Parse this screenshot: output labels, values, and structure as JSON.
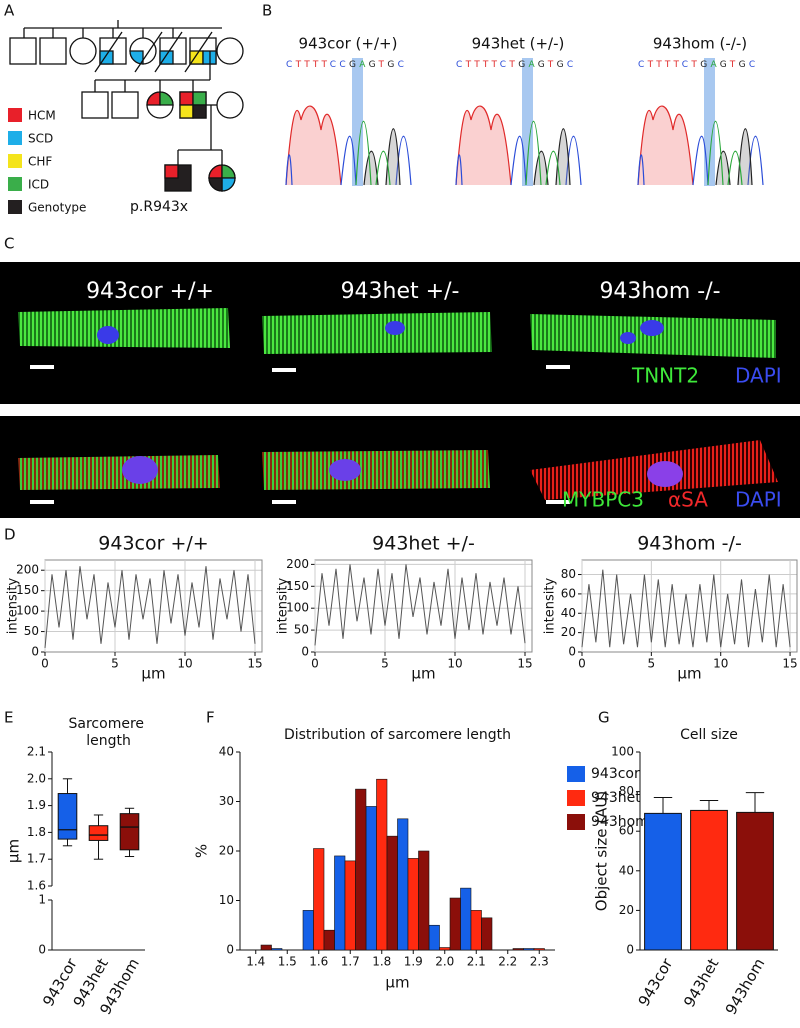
{
  "panel_labels": [
    "A",
    "B",
    "C",
    "D",
    "E",
    "F",
    "G"
  ],
  "pedigree": {
    "legend": [
      {
        "label": "HCM",
        "color": "#e8202a"
      },
      {
        "label": "SCD",
        "color": "#1eaee8"
      },
      {
        "label": "CHF",
        "color": "#f4e41c"
      },
      {
        "label": "ICD",
        "color": "#3aae4a"
      },
      {
        "label": "Genotype",
        "color": "#231f20"
      }
    ],
    "variant": "p.R943x"
  },
  "sequencing": [
    {
      "title": "943cor (+/+)",
      "sequence": "CTTTTCCGAGTGC"
    },
    {
      "title": "943het (+/-)",
      "sequence": "CTTTTCTGAGTGC"
    },
    {
      "title": "943hom (-/-)",
      "sequence": "CTTTTCTGAGTGC"
    }
  ],
  "imaging": {
    "titles": [
      "943cor +/+",
      "943het +/-",
      "943hom -/-"
    ],
    "top_stains": [
      {
        "label": "TNNT2",
        "color": "#3ee83a"
      },
      {
        "label": "DAPI",
        "color": "#3a4cf0"
      }
    ],
    "bottom_stains": [
      {
        "label": "MYBPC3",
        "color": "#3ee83a"
      },
      {
        "label": "αSA",
        "color": "#f0282a"
      },
      {
        "label": "DAPI",
        "color": "#3a4cf0"
      }
    ]
  },
  "chart_data": [
    {
      "type": "line",
      "title": "943cor +/+",
      "xlabel": "µm",
      "ylabel": "intensity",
      "grid": true,
      "color": "#555555",
      "x": [
        0,
        0.5,
        1,
        1.5,
        2,
        2.5,
        3,
        3.5,
        4,
        4.5,
        5,
        5.5,
        6,
        6.5,
        7,
        7.5,
        8,
        8.5,
        9,
        9.5,
        10,
        10.5,
        11,
        11.5,
        12,
        12.5,
        13,
        13.5,
        14,
        14.5,
        15
      ],
      "values": [
        10,
        190,
        60,
        200,
        30,
        210,
        80,
        190,
        20,
        170,
        60,
        200,
        30,
        190,
        80,
        180,
        20,
        200,
        70,
        190,
        40,
        170,
        60,
        210,
        30,
        180,
        80,
        200,
        50,
        190,
        20
      ],
      "xlim": [
        0,
        15.5
      ],
      "xticks": [
        0,
        5,
        10,
        15
      ],
      "ylim": [
        0,
        225
      ],
      "yticks": [
        0,
        50,
        100,
        150,
        200
      ]
    },
    {
      "type": "line",
      "title": "943het +/-",
      "xlabel": "µm",
      "ylabel": "intensity",
      "grid": true,
      "color": "#555555",
      "x": [
        0,
        0.5,
        1,
        1.5,
        2,
        2.5,
        3,
        3.5,
        4,
        4.5,
        5,
        5.5,
        6,
        6.5,
        7,
        7.5,
        8,
        8.5,
        9,
        9.5,
        10,
        10.5,
        11,
        11.5,
        12,
        12.5,
        13,
        13.5,
        14,
        14.5,
        15
      ],
      "values": [
        15,
        180,
        60,
        190,
        30,
        200,
        70,
        170,
        40,
        190,
        60,
        180,
        30,
        200,
        80,
        170,
        40,
        160,
        60,
        190,
        30,
        170,
        50,
        180,
        40,
        160,
        60,
        170,
        40,
        150,
        20
      ],
      "xlim": [
        0,
        15.5
      ],
      "xticks": [
        0,
        5,
        10,
        15
      ],
      "ylim": [
        0,
        210
      ],
      "yticks": [
        0,
        50,
        100,
        150,
        200
      ]
    },
    {
      "type": "line",
      "title": "943hom -/-",
      "xlabel": "µm",
      "ylabel": "intensity",
      "grid": true,
      "color": "#555555",
      "x": [
        0,
        0.5,
        1,
        1.5,
        2,
        2.5,
        3,
        3.5,
        4,
        4.5,
        5,
        5.5,
        6,
        6.5,
        7,
        7.5,
        8,
        8.5,
        9,
        9.5,
        10,
        10.5,
        11,
        11.5,
        12,
        12.5,
        13,
        13.5,
        14,
        14.5,
        15
      ],
      "values": [
        5,
        70,
        10,
        85,
        5,
        80,
        8,
        60,
        5,
        80,
        10,
        75,
        5,
        70,
        8,
        60,
        5,
        70,
        10,
        80,
        5,
        60,
        8,
        75,
        5,
        65,
        10,
        80,
        5,
        70,
        5
      ],
      "xlim": [
        0,
        15.5
      ],
      "xticks": [
        0,
        5,
        10,
        15
      ],
      "ylim": [
        0,
        95
      ],
      "yticks": [
        0,
        20,
        40,
        60,
        80
      ]
    },
    {
      "type": "box",
      "title": "Sarcomere length",
      "ylabel": "µm",
      "categories": [
        "943cor",
        "943het",
        "943hom"
      ],
      "colors": [
        "#1560e8",
        "#ff2a10",
        "#8b0f0a"
      ],
      "boxes": [
        {
          "min": 1.75,
          "q1": 1.775,
          "median": 1.81,
          "q3": 1.945,
          "max": 2.0
        },
        {
          "min": 1.7,
          "q1": 1.77,
          "median": 1.79,
          "q3": 1.825,
          "max": 1.865
        },
        {
          "min": 1.71,
          "q1": 1.735,
          "median": 1.82,
          "q3": 1.87,
          "max": 1.89
        }
      ],
      "ylim": [
        0,
        2.1
      ],
      "ybreak": [
        1,
        1.6
      ],
      "yticks": [
        0,
        1,
        1.6,
        1.7,
        1.8,
        1.9,
        {
          "value": 2,
          "label": "2.0"
        },
        2.1
      ]
    },
    {
      "type": "bar",
      "title": "Distribution of sarcomere length",
      "xlabel": "µm",
      "ylabel": "%",
      "x": [
        1.4,
        1.5,
        1.6,
        1.7,
        1.8,
        1.9,
        2.0,
        2.1,
        2.2,
        2.3
      ],
      "series": [
        {
          "name": "943cor",
          "color": "#1560e8",
          "values": [
            0,
            0.3,
            8,
            19,
            29,
            26.5,
            5,
            12.5,
            0,
            0.3
          ]
        },
        {
          "name": "943het",
          "color": "#ff2a10",
          "values": [
            0,
            0,
            20.5,
            18,
            34.5,
            18.5,
            0.5,
            8,
            0,
            0.3
          ]
        },
        {
          "name": "943hom",
          "color": "#8b0f0a",
          "values": [
            1,
            0,
            4,
            32.5,
            23,
            20,
            10.5,
            6.5,
            0.3,
            0
          ]
        }
      ],
      "xlim": [
        1.35,
        2.35
      ],
      "xticks": [
        1.4,
        1.5,
        1.6,
        1.7,
        1.8,
        1.9,
        {
          "value": 2,
          "label": "2.0"
        },
        2.1,
        2.2,
        2.3
      ],
      "ylim": [
        0,
        40
      ],
      "yticks": [
        0,
        10,
        20,
        30,
        40
      ],
      "legend": "upper right"
    },
    {
      "type": "bar",
      "title": "Cell size",
      "ylabel": "Object size (AU)",
      "categories": [
        "943cor",
        "943het",
        "943hom"
      ],
      "colors": [
        "#1560e8",
        "#ff2a10",
        "#8b0f0a"
      ],
      "values": [
        69,
        70.5,
        69.5
      ],
      "errors": [
        8,
        5,
        10
      ],
      "ylim": [
        0,
        100
      ],
      "yticks": [
        0,
        20,
        40,
        60,
        80,
        100
      ]
    }
  ]
}
